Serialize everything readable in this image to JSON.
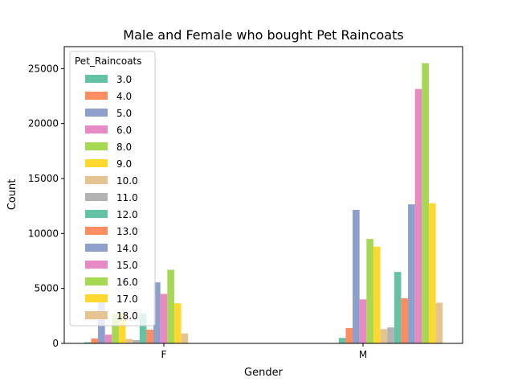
{
  "chart_data": {
    "type": "bar",
    "title": "Male and Female who bought Pet Raincoats",
    "xlabel": "Gender",
    "ylabel": "Count",
    "categories": [
      "F",
      "M"
    ],
    "ylim": [
      0,
      27000
    ],
    "yticks": [
      0,
      5000,
      10000,
      15000,
      20000,
      25000
    ],
    "legend": {
      "title": "Pet_Raincoats",
      "placement": "top-left"
    },
    "series": [
      {
        "name": "3.0",
        "color": "#66c2a5",
        "values": [
          100,
          0
        ]
      },
      {
        "name": "4.0",
        "color": "#fc8d62",
        "values": [
          450,
          0
        ]
      },
      {
        "name": "5.0",
        "color": "#8da0cb",
        "values": [
          4000,
          0
        ]
      },
      {
        "name": "6.0",
        "color": "#e78ac3",
        "values": [
          800,
          0
        ]
      },
      {
        "name": "8.0",
        "color": "#a6d854",
        "values": [
          2700,
          0
        ]
      },
      {
        "name": "9.0",
        "color": "#ffd92f",
        "values": [
          2700,
          0
        ]
      },
      {
        "name": "10.0",
        "color": "#e5c494",
        "values": [
          400,
          0
        ]
      },
      {
        "name": "11.0",
        "color": "#b3b3b3",
        "values": [
          300,
          0
        ]
      },
      {
        "name": "12.0",
        "color": "#66c2a5",
        "values": [
          2700,
          500
        ]
      },
      {
        "name": "13.0",
        "color": "#fc8d62",
        "values": [
          1250,
          1400
        ]
      },
      {
        "name": "14.0",
        "color": "#8da0cb",
        "values": [
          5550,
          12150
        ]
      },
      {
        "name": "15.0",
        "color": "#e78ac3",
        "values": [
          4500,
          4000
        ]
      },
      {
        "name": "16.0",
        "color": "#a6d854",
        "values": [
          6700,
          9500
        ]
      },
      {
        "name": "17.0",
        "color": "#ffd92f",
        "values": [
          3650,
          8800
        ]
      },
      {
        "name": "18.0",
        "color": "#e5c494",
        "values": [
          900,
          1300
        ]
      },
      {
        "name": "",
        "color": "#b3b3b3",
        "values": [
          0,
          1450
        ]
      },
      {
        "name": "",
        "color": "#66c2a5",
        "values": [
          0,
          6500
        ]
      },
      {
        "name": "",
        "color": "#fc8d62",
        "values": [
          0,
          4100
        ]
      },
      {
        "name": "",
        "color": "#8da0cb",
        "values": [
          0,
          12650
        ]
      },
      {
        "name": "",
        "color": "#e78ac3",
        "values": [
          0,
          23150
        ]
      },
      {
        "name": "",
        "color": "#a6d854",
        "values": [
          0,
          25500
        ]
      },
      {
        "name": "",
        "color": "#ffd92f",
        "values": [
          0,
          12750
        ]
      },
      {
        "name": "",
        "color": "#e5c494",
        "values": [
          0,
          3700
        ]
      }
    ]
  }
}
